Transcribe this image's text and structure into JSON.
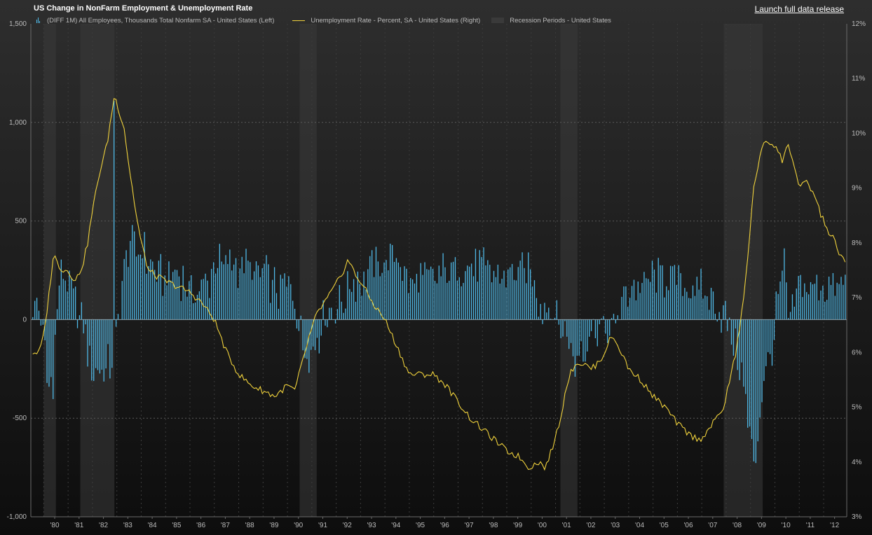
{
  "header": {
    "title": "US Change in NonFarm Employment & Unemployment Rate",
    "launch_link": "Launch full data release"
  },
  "chart_data": {
    "type": "bar+line",
    "title": "US Change in NonFarm Employment & Unemployment Rate",
    "legend_position": "top-left",
    "grid": true,
    "x_range": [
      1979.5,
      1992.9
    ],
    "x_tick_labels": [
      "'80",
      "'81",
      "'82",
      "'83",
      "'84",
      "'85",
      "'86",
      "'87",
      "'88",
      "'89",
      "'90",
      "'91",
      "'92",
      "'93",
      "'94",
      "'95",
      "'96",
      "'97",
      "'98",
      "'99",
      "'00",
      "'01",
      "'02",
      "'03",
      "'04",
      "'05",
      "'06",
      "'07",
      "'08",
      "'09",
      "'10",
      "'11",
      "'12"
    ],
    "left_axis": {
      "min": -1000,
      "max": 1500,
      "ticks": [
        -1000,
        -500,
        0,
        500,
        1000,
        1500
      ],
      "tick_labels": [
        "-1,000",
        "-500",
        "0",
        "500",
        "1,000",
        "1,500"
      ]
    },
    "right_axis": {
      "min": 3,
      "max": 12,
      "ticks": [
        3,
        4,
        5,
        6,
        7,
        8,
        9,
        10,
        11,
        12
      ],
      "tick_labels": [
        "3%",
        "4%",
        "5%",
        "6%",
        "7%",
        "8%",
        "9%",
        "10%",
        "11%",
        "12%"
      ]
    },
    "series": [
      {
        "name": "(DIFF 1M) All Employees, Thousands Total Nonfarm SA  - United States  (Left)",
        "axis": "left",
        "kind": "bar",
        "color": "#4fb8e6",
        "anchors": [
          [
            1979.55,
            100
          ],
          [
            1979.8,
            50
          ],
          [
            1980.0,
            -100
          ],
          [
            1980.2,
            -380
          ],
          [
            1980.4,
            -280
          ],
          [
            1980.6,
            180
          ],
          [
            1980.8,
            230
          ],
          [
            1981.0,
            150
          ],
          [
            1981.2,
            120
          ],
          [
            1981.4,
            60
          ],
          [
            1981.6,
            -20
          ],
          [
            1981.8,
            -150
          ],
          [
            1982.0,
            -250
          ],
          [
            1982.2,
            -230
          ],
          [
            1982.4,
            -270
          ],
          [
            1982.6,
            -250
          ],
          [
            1982.8,
            -200
          ],
          [
            1983.0,
            -80
          ],
          [
            1983.2,
            200
          ],
          [
            1983.4,
            360
          ],
          [
            1983.6,
            420
          ],
          [
            1983.8,
            300
          ],
          [
            1984.0,
            380
          ],
          [
            1984.3,
            280
          ],
          [
            1984.6,
            250
          ],
          [
            1985.0,
            210
          ],
          [
            1985.5,
            230
          ],
          [
            1986.0,
            170
          ],
          [
            1986.5,
            150
          ],
          [
            1987.0,
            250
          ],
          [
            1987.5,
            300
          ],
          [
            1988.0,
            280
          ],
          [
            1988.5,
            260
          ],
          [
            1989.0,
            230
          ],
          [
            1989.5,
            150
          ],
          [
            1990.0,
            170
          ],
          [
            1990.3,
            100
          ],
          [
            1990.5,
            -60
          ],
          [
            1990.8,
            -150
          ],
          [
            1991.0,
            -170
          ],
          [
            1991.3,
            -60
          ],
          [
            1991.6,
            30
          ],
          [
            1992.0,
            60
          ],
          [
            1992.3,
            90
          ],
          [
            1992.6,
            180
          ],
          [
            1993.0,
            210
          ],
          [
            1993.5,
            260
          ],
          [
            1994.0,
            280
          ],
          [
            1994.5,
            320
          ],
          [
            1995.0,
            190
          ],
          [
            1995.5,
            200
          ],
          [
            1996.0,
            220
          ],
          [
            1996.5,
            240
          ],
          [
            1997.0,
            260
          ],
          [
            1997.5,
            280
          ],
          [
            1998.0,
            250
          ],
          [
            1998.5,
            230
          ],
          [
            1999.0,
            230
          ],
          [
            1999.5,
            250
          ],
          [
            2000.0,
            240
          ],
          [
            2000.3,
            100
          ],
          [
            2000.6,
            50
          ],
          [
            2000.9,
            60
          ],
          [
            2001.2,
            -30
          ],
          [
            2001.5,
            -100
          ],
          [
            2001.8,
            -250
          ],
          [
            2002.0,
            -140
          ],
          [
            2002.5,
            -60
          ],
          [
            2003.0,
            -30
          ],
          [
            2003.3,
            -70
          ],
          [
            2003.6,
            50
          ],
          [
            2004.0,
            150
          ],
          [
            2004.5,
            180
          ],
          [
            2005.0,
            200
          ],
          [
            2005.5,
            220
          ],
          [
            2006.0,
            200
          ],
          [
            2006.5,
            170
          ],
          [
            2007.0,
            130
          ],
          [
            2007.5,
            80
          ],
          [
            2007.9,
            20
          ],
          [
            2008.1,
            -40
          ],
          [
            2008.4,
            -170
          ],
          [
            2008.7,
            -310
          ],
          [
            2008.95,
            -600
          ],
          [
            2009.2,
            -720
          ],
          [
            2009.4,
            -430
          ],
          [
            2009.6,
            -270
          ],
          [
            2009.8,
            -180
          ],
          [
            2010.0,
            -20
          ],
          [
            2010.2,
            160
          ],
          [
            2010.4,
            280
          ],
          [
            2010.6,
            -80
          ],
          [
            2010.8,
            130
          ],
          [
            2011.0,
            150
          ],
          [
            2011.5,
            160
          ],
          [
            2012.0,
            180
          ],
          [
            2012.5,
            150
          ],
          [
            2012.9,
            190
          ]
        ]
      },
      {
        "name": "Unemployment Rate - Percent, SA - United States  (Right)",
        "axis": "right",
        "kind": "line",
        "color": "#f0d23c",
        "anchors": [
          [
            1979.55,
            6.0
          ],
          [
            1979.8,
            6.0
          ],
          [
            1980.0,
            6.3
          ],
          [
            1980.2,
            7.0
          ],
          [
            1980.4,
            7.8
          ],
          [
            1980.6,
            7.6
          ],
          [
            1980.8,
            7.5
          ],
          [
            1981.0,
            7.5
          ],
          [
            1981.3,
            7.3
          ],
          [
            1981.6,
            7.6
          ],
          [
            1981.8,
            8.0
          ],
          [
            1982.0,
            8.6
          ],
          [
            1982.3,
            9.3
          ],
          [
            1982.6,
            9.8
          ],
          [
            1982.9,
            10.7
          ],
          [
            1983.1,
            10.4
          ],
          [
            1983.3,
            10.1
          ],
          [
            1983.5,
            9.4
          ],
          [
            1983.8,
            8.5
          ],
          [
            1984.0,
            8.0
          ],
          [
            1984.3,
            7.5
          ],
          [
            1984.6,
            7.4
          ],
          [
            1985.0,
            7.3
          ],
          [
            1985.5,
            7.2
          ],
          [
            1986.0,
            7.1
          ],
          [
            1986.5,
            6.9
          ],
          [
            1987.0,
            6.6
          ],
          [
            1987.5,
            6.0
          ],
          [
            1988.0,
            5.6
          ],
          [
            1988.5,
            5.4
          ],
          [
            1989.0,
            5.3
          ],
          [
            1989.5,
            5.2
          ],
          [
            1990.0,
            5.4
          ],
          [
            1990.3,
            5.3
          ],
          [
            1990.6,
            5.8
          ],
          [
            1990.9,
            6.3
          ],
          [
            1991.2,
            6.7
          ],
          [
            1991.5,
            6.9
          ],
          [
            1991.8,
            7.1
          ],
          [
            1992.2,
            7.4
          ],
          [
            1992.5,
            7.7
          ],
          [
            1992.8,
            7.4
          ],
          [
            1993.0,
            7.3
          ],
          [
            1993.5,
            6.9
          ],
          [
            1994.0,
            6.6
          ],
          [
            1994.5,
            6.1
          ],
          [
            1995.0,
            5.6
          ],
          [
            1995.5,
            5.6
          ],
          [
            1996.0,
            5.6
          ],
          [
            1996.5,
            5.4
          ],
          [
            1997.0,
            5.1
          ],
          [
            1997.5,
            4.8
          ],
          [
            1998.0,
            4.6
          ],
          [
            1998.5,
            4.4
          ],
          [
            1999.0,
            4.2
          ],
          [
            1999.5,
            4.1
          ],
          [
            1999.9,
            3.9
          ],
          [
            2000.3,
            4.0
          ],
          [
            2000.6,
            3.9
          ],
          [
            2000.9,
            4.3
          ],
          [
            2001.2,
            4.8
          ],
          [
            2001.5,
            5.5
          ],
          [
            2001.8,
            5.8
          ],
          [
            2002.1,
            5.8
          ],
          [
            2002.5,
            5.7
          ],
          [
            2002.9,
            5.9
          ],
          [
            2003.3,
            6.3
          ],
          [
            2003.6,
            6.1
          ],
          [
            2004.0,
            5.7
          ],
          [
            2004.5,
            5.5
          ],
          [
            2005.0,
            5.2
          ],
          [
            2005.5,
            5.0
          ],
          [
            2006.0,
            4.7
          ],
          [
            2006.5,
            4.5
          ],
          [
            2006.9,
            4.4
          ],
          [
            2007.3,
            4.6
          ],
          [
            2007.6,
            4.8
          ],
          [
            2007.9,
            5.0
          ],
          [
            2008.1,
            5.4
          ],
          [
            2008.4,
            6.0
          ],
          [
            2008.7,
            6.9
          ],
          [
            2008.9,
            7.8
          ],
          [
            2009.1,
            8.9
          ],
          [
            2009.3,
            9.4
          ],
          [
            2009.6,
            9.9
          ],
          [
            2009.85,
            9.8
          ],
          [
            2010.0,
            9.8
          ],
          [
            2010.3,
            9.5
          ],
          [
            2010.55,
            9.8
          ],
          [
            2010.75,
            9.5
          ],
          [
            2011.0,
            9.0
          ],
          [
            2011.3,
            9.1
          ],
          [
            2011.6,
            8.9
          ],
          [
            2011.9,
            8.5
          ],
          [
            2012.2,
            8.2
          ],
          [
            2012.4,
            8.1
          ],
          [
            2012.6,
            7.8
          ],
          [
            2012.9,
            7.7
          ]
        ]
      },
      {
        "name": "Recession Periods - United States",
        "kind": "shade",
        "color": "#3a3a3a",
        "periods": [
          [
            1980.0,
            1980.5
          ],
          [
            1981.5,
            1982.9
          ],
          [
            1990.5,
            1991.2
          ],
          [
            2001.2,
            2001.9
          ],
          [
            2007.9,
            2009.5
          ]
        ]
      }
    ]
  }
}
